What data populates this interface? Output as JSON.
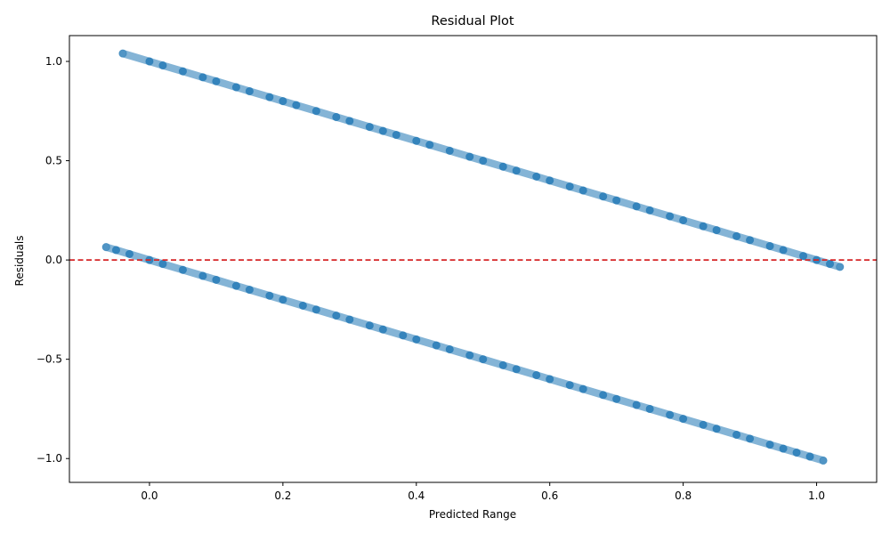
{
  "chart_data": {
    "type": "scatter",
    "title": "Residual Plot",
    "xlabel": "Predicted Range",
    "ylabel": "Residuals",
    "xlim": [
      -0.12,
      1.09
    ],
    "ylim": [
      -1.12,
      1.13
    ],
    "x_ticks": [
      0.0,
      0.2,
      0.4,
      0.6,
      0.8,
      1.0
    ],
    "x_tick_labels": [
      "0.0",
      "0.2",
      "0.4",
      "0.6",
      "0.8",
      "1.0"
    ],
    "y_ticks": [
      -1.0,
      -0.5,
      0.0,
      0.5,
      1.0
    ],
    "y_tick_labels": [
      "−1.0",
      "−0.5",
      "0.0",
      "0.5",
      "1.0"
    ],
    "grid": false,
    "reference_line": {
      "y": 0,
      "style": "dashed",
      "color": "#d62728"
    },
    "point_color": "#1f77b4",
    "point_alpha": 0.5,
    "series": [
      {
        "points": [
          [
            -0.04,
            1.04
          ],
          [
            0.0,
            1.0
          ],
          [
            0.02,
            0.98
          ],
          [
            0.05,
            0.95
          ],
          [
            0.08,
            0.92
          ],
          [
            0.1,
            0.9
          ],
          [
            0.13,
            0.87
          ],
          [
            0.15,
            0.85
          ],
          [
            0.18,
            0.82
          ],
          [
            0.2,
            0.8
          ],
          [
            0.22,
            0.78
          ],
          [
            0.25,
            0.75
          ],
          [
            0.28,
            0.72
          ],
          [
            0.3,
            0.7
          ],
          [
            0.33,
            0.67
          ],
          [
            0.35,
            0.65
          ],
          [
            0.37,
            0.63
          ],
          [
            0.4,
            0.6
          ],
          [
            0.42,
            0.58
          ],
          [
            0.45,
            0.55
          ],
          [
            0.48,
            0.52
          ],
          [
            0.5,
            0.5
          ],
          [
            0.53,
            0.47
          ],
          [
            0.55,
            0.45
          ],
          [
            0.58,
            0.42
          ],
          [
            0.6,
            0.4
          ],
          [
            0.63,
            0.37
          ],
          [
            0.65,
            0.35
          ],
          [
            0.68,
            0.32
          ],
          [
            0.7,
            0.3
          ],
          [
            0.73,
            0.27
          ],
          [
            0.75,
            0.25
          ],
          [
            0.78,
            0.22
          ],
          [
            0.8,
            0.2
          ],
          [
            0.83,
            0.17
          ],
          [
            0.85,
            0.15
          ],
          [
            0.88,
            0.12
          ],
          [
            0.9,
            0.1
          ],
          [
            0.93,
            0.07
          ],
          [
            0.95,
            0.05
          ],
          [
            0.98,
            0.02
          ],
          [
            1.0,
            0.0
          ],
          [
            1.02,
            -0.02
          ],
          [
            1.035,
            -0.035
          ],
          [
            -0.065,
            0.065
          ],
          [
            -0.05,
            0.05
          ],
          [
            -0.03,
            0.03
          ],
          [
            0.0,
            0.0
          ],
          [
            0.02,
            -0.02
          ],
          [
            0.05,
            -0.05
          ],
          [
            0.08,
            -0.08
          ],
          [
            0.1,
            -0.1
          ],
          [
            0.13,
            -0.13
          ],
          [
            0.15,
            -0.15
          ],
          [
            0.18,
            -0.18
          ],
          [
            0.2,
            -0.2
          ],
          [
            0.23,
            -0.23
          ],
          [
            0.25,
            -0.25
          ],
          [
            0.28,
            -0.28
          ],
          [
            0.3,
            -0.3
          ],
          [
            0.33,
            -0.33
          ],
          [
            0.35,
            -0.35
          ],
          [
            0.38,
            -0.38
          ],
          [
            0.4,
            -0.4
          ],
          [
            0.43,
            -0.43
          ],
          [
            0.45,
            -0.45
          ],
          [
            0.48,
            -0.48
          ],
          [
            0.5,
            -0.5
          ],
          [
            0.53,
            -0.53
          ],
          [
            0.55,
            -0.55
          ],
          [
            0.58,
            -0.58
          ],
          [
            0.6,
            -0.6
          ],
          [
            0.63,
            -0.63
          ],
          [
            0.65,
            -0.65
          ],
          [
            0.68,
            -0.68
          ],
          [
            0.7,
            -0.7
          ],
          [
            0.73,
            -0.73
          ],
          [
            0.75,
            -0.75
          ],
          [
            0.78,
            -0.78
          ],
          [
            0.8,
            -0.8
          ],
          [
            0.83,
            -0.83
          ],
          [
            0.85,
            -0.85
          ],
          [
            0.88,
            -0.88
          ],
          [
            0.9,
            -0.9
          ],
          [
            0.93,
            -0.93
          ],
          [
            0.95,
            -0.95
          ],
          [
            0.97,
            -0.97
          ],
          [
            0.99,
            -0.99
          ],
          [
            1.01,
            -1.01
          ]
        ]
      }
    ]
  }
}
